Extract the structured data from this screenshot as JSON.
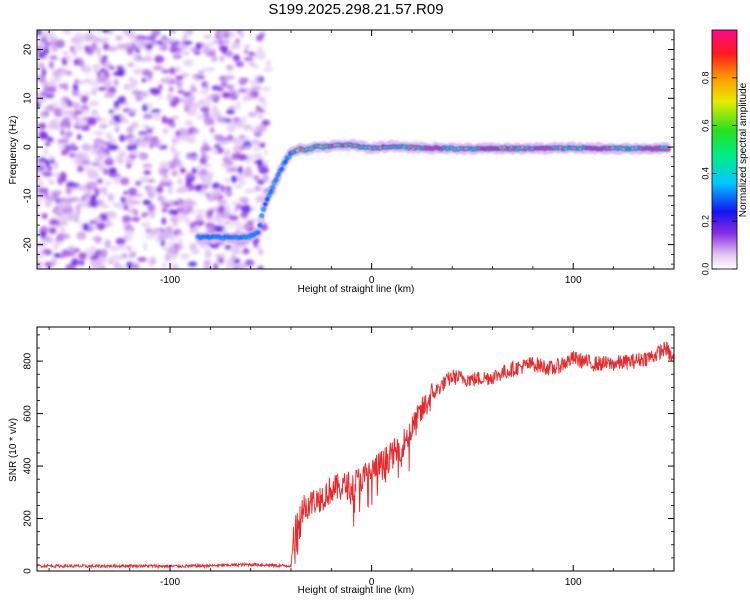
{
  "title": "S199.2025.298.21.57.R09",
  "chart_data": [
    {
      "type": "heatmap",
      "title": "",
      "xlabel": "Height of straight line (km)",
      "ylabel": "Frequency (Hz)",
      "xlim": [
        -166,
        150
      ],
      "ylim": [
        -25,
        24
      ],
      "xticks": [
        -100,
        0,
        100
      ],
      "yticks": [
        -20,
        -10,
        0,
        10,
        20
      ],
      "grid": false,
      "description_series": {
        "name": "dominant ridge",
        "x": [
          -86,
          -62,
          -56,
          -54,
          -50,
          -46,
          -43,
          -40,
          -36,
          -32,
          -28,
          -24,
          -18,
          -10,
          0,
          10,
          20,
          40,
          60,
          80,
          100,
          120,
          140,
          148
        ],
        "y": [
          -18.5,
          -18.5,
          -17.5,
          -13,
          -9,
          -5.5,
          -3,
          -1.2,
          -0.4,
          -0.6,
          0.2,
          0.0,
          0.3,
          0.4,
          -0.3,
          0.2,
          -0.1,
          -0.3,
          -0.3,
          -0.3,
          -0.2,
          -0.3,
          -0.3,
          -0.3
        ]
      },
      "colorbar": {
        "label": "Normalized spectral amplitude",
        "range": [
          0.0,
          1.0
        ],
        "ticks": [
          "0.0",
          "0.2",
          "0.4",
          "0.6",
          "0.8"
        ]
      }
    },
    {
      "type": "line",
      "title": "",
      "xlabel": "Height of straight line (km)",
      "ylabel": "SNR (10 * v/v)",
      "xlim": [
        -166,
        150
      ],
      "ylim": [
        0,
        930
      ],
      "xticks": [
        -100,
        0,
        100
      ],
      "yticks": [
        0,
        200,
        400,
        600,
        800
      ],
      "grid": false,
      "color": "#e8282a",
      "x": [
        -166,
        -140,
        -120,
        -100,
        -80,
        -60,
        -50,
        -45,
        -40,
        -39,
        -37,
        -35,
        -30,
        -25,
        -20,
        -15,
        -10,
        -5,
        0,
        5,
        10,
        15,
        20,
        25,
        30,
        35,
        40,
        50,
        60,
        70,
        80,
        90,
        100,
        110,
        120,
        130,
        140,
        146,
        150
      ],
      "y": [
        20,
        18,
        20,
        18,
        20,
        25,
        22,
        20,
        20,
        100,
        200,
        240,
        260,
        280,
        310,
        320,
        330,
        350,
        380,
        410,
        440,
        480,
        540,
        610,
        670,
        710,
        740,
        730,
        740,
        770,
        790,
        770,
        810,
        790,
        790,
        800,
        820,
        850,
        800
      ]
    }
  ]
}
